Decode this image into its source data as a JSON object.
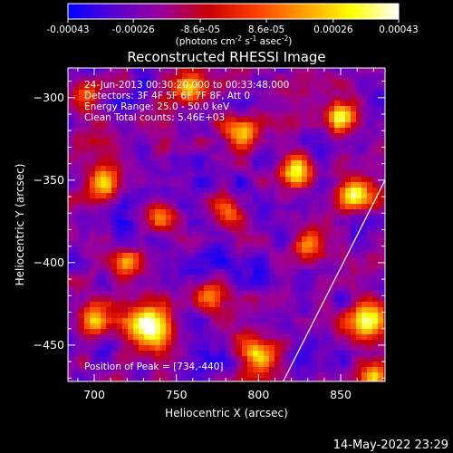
{
  "colorbar": {
    "tick_labels": [
      "-0.00043",
      "-0.00026",
      "-8.6e-05",
      "8.6e-05",
      "0.00026",
      "0.00043"
    ],
    "tick_values": [
      -0.00043,
      -0.00026,
      -8.6e-05,
      8.6e-05,
      0.00026,
      0.00043
    ],
    "range": [
      -0.00043,
      0.00043
    ],
    "unit_parts": [
      "(photons cm",
      "-2",
      " s",
      "-1",
      " asec",
      "-2",
      ")"
    ],
    "colors": [
      "#0000ff",
      "#5a00d0",
      "#9a009a",
      "#c80000",
      "#ff4000",
      "#ffa000",
      "#ffff00",
      "#ffffff"
    ]
  },
  "chart_data": {
    "type": "heatmap",
    "title": "Reconstructed RHESSI Image",
    "xlabel": "Heliocentric X (arcsec)",
    "ylabel": "Heliocentric Y (arcsec)",
    "xlim": [
      684,
      877
    ],
    "ylim": [
      -472,
      -282
    ],
    "xticks": [
      700,
      750,
      800,
      850
    ],
    "yticks": [
      -300,
      -350,
      -400,
      -450
    ],
    "xtick_labels": [
      "700",
      "750",
      "800",
      "850"
    ],
    "ytick_labels": [
      "−300",
      "−350",
      "−400",
      "−450"
    ],
    "annotations": [
      "24-Jun-2013 00:30:20.000 to 00:33:48.000",
      "Detectors: 3F 4F 5F 6F 7F 8F, Att 0",
      "Energy Range: 25.0 - 50.0 keV",
      "Clean     Total counts: 5.46E+03"
    ],
    "peak_label": "Position of Peak = [734,-440]",
    "peak": [
      734,
      -440
    ],
    "limb_line": [
      [
        815,
        -472
      ],
      [
        877,
        -350
      ]
    ],
    "intensity_range": [
      -0.00043,
      0.00043
    ],
    "blobs": [
      {
        "x": 734,
        "y": -440,
        "amp": 1.0,
        "w": 14
      },
      {
        "x": 867,
        "y": -435,
        "amp": 0.92,
        "w": 12
      },
      {
        "x": 860,
        "y": -358,
        "amp": 0.8,
        "w": 10
      },
      {
        "x": 823,
        "y": -345,
        "amp": 0.78,
        "w": 10
      },
      {
        "x": 706,
        "y": -352,
        "amp": 0.75,
        "w": 10
      },
      {
        "x": 790,
        "y": -322,
        "amp": 0.7,
        "w": 10
      },
      {
        "x": 850,
        "y": -310,
        "amp": 0.72,
        "w": 10
      },
      {
        "x": 760,
        "y": -295,
        "amp": 0.6,
        "w": 11
      },
      {
        "x": 695,
        "y": -300,
        "amp": 0.62,
        "w": 9
      },
      {
        "x": 700,
        "y": -435,
        "amp": 0.75,
        "w": 10
      },
      {
        "x": 800,
        "y": -455,
        "amp": 0.72,
        "w": 11
      },
      {
        "x": 830,
        "y": -390,
        "amp": 0.55,
        "w": 9
      },
      {
        "x": 740,
        "y": -370,
        "amp": 0.55,
        "w": 9
      },
      {
        "x": 780,
        "y": -372,
        "amp": 0.5,
        "w": 9
      },
      {
        "x": 720,
        "y": -400,
        "amp": 0.45,
        "w": 8
      },
      {
        "x": 870,
        "y": -470,
        "amp": 0.75,
        "w": 8
      },
      {
        "x": 770,
        "y": -420,
        "amp": 0.45,
        "w": 9
      }
    ]
  },
  "footer": {
    "timestamp": "14-May-2022 23:29"
  }
}
